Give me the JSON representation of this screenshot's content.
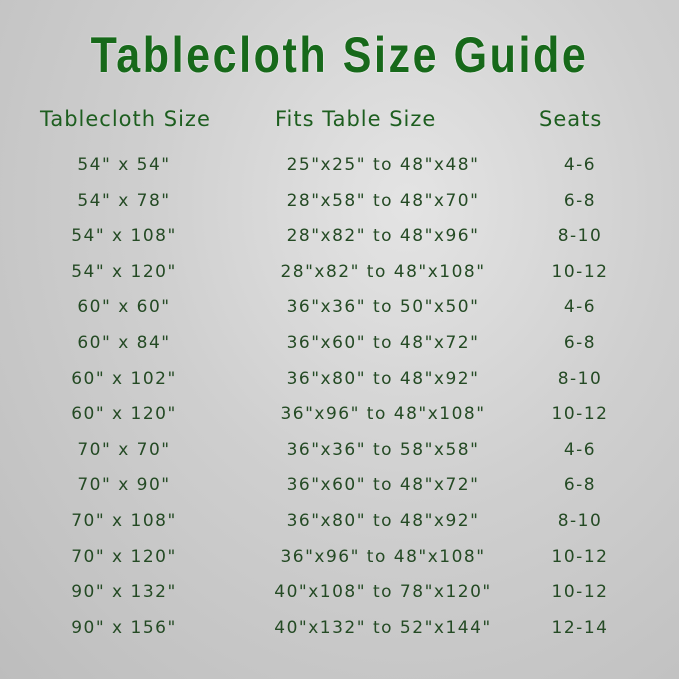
{
  "title": "Tablecloth Size Guide",
  "headers": {
    "size": "Tablecloth Size",
    "fits": "Fits Table Size",
    "seats": "Seats"
  },
  "rows": [
    {
      "size": "54\" x 54\"",
      "fits": "25\"x25\" to 48\"x48\"",
      "seats": "4-6"
    },
    {
      "size": "54\" x 78\"",
      "fits": "28\"x58\" to 48\"x70\"",
      "seats": "6-8"
    },
    {
      "size": "54\" x 108\"",
      "fits": "28\"x82\" to 48\"x96\"",
      "seats": "8-10"
    },
    {
      "size": "54\" x 120\"",
      "fits": "28\"x82\" to 48\"x108\"",
      "seats": "10-12"
    },
    {
      "size": "60\" x 60\"",
      "fits": "36\"x36\" to 50\"x50\"",
      "seats": "4-6"
    },
    {
      "size": "60\" x 84\"",
      "fits": "36\"x60\" to 48\"x72\"",
      "seats": "6-8"
    },
    {
      "size": "60\" x 102\"",
      "fits": "36\"x80\" to 48\"x92\"",
      "seats": "8-10"
    },
    {
      "size": "60\" x 120\"",
      "fits": "36\"x96\" to 48\"x108\"",
      "seats": "10-12"
    },
    {
      "size": "70\" x 70\"",
      "fits": "36\"x36\" to 58\"x58\"",
      "seats": "4-6"
    },
    {
      "size": "70\" x 90\"",
      "fits": "36\"x60\" to 48\"x72\"",
      "seats": "6-8"
    },
    {
      "size": "70\" x 108\"",
      "fits": "36\"x80\" to 48\"x92\"",
      "seats": "8-10"
    },
    {
      "size": "70\" x 120\"",
      "fits": "36\"x96\" to 48\"x108\"",
      "seats": "10-12"
    },
    {
      "size": "90\" x 132\"",
      "fits": "40\"x108\" to 78\"x120\"",
      "seats": "10-12"
    },
    {
      "size": "90\" x 156\"",
      "fits": "40\"x132\" to 52\"x144\"",
      "seats": "12-14"
    }
  ],
  "colors": {
    "title": "#17691a",
    "header": "#1d5e1f",
    "text": "#244a24"
  }
}
